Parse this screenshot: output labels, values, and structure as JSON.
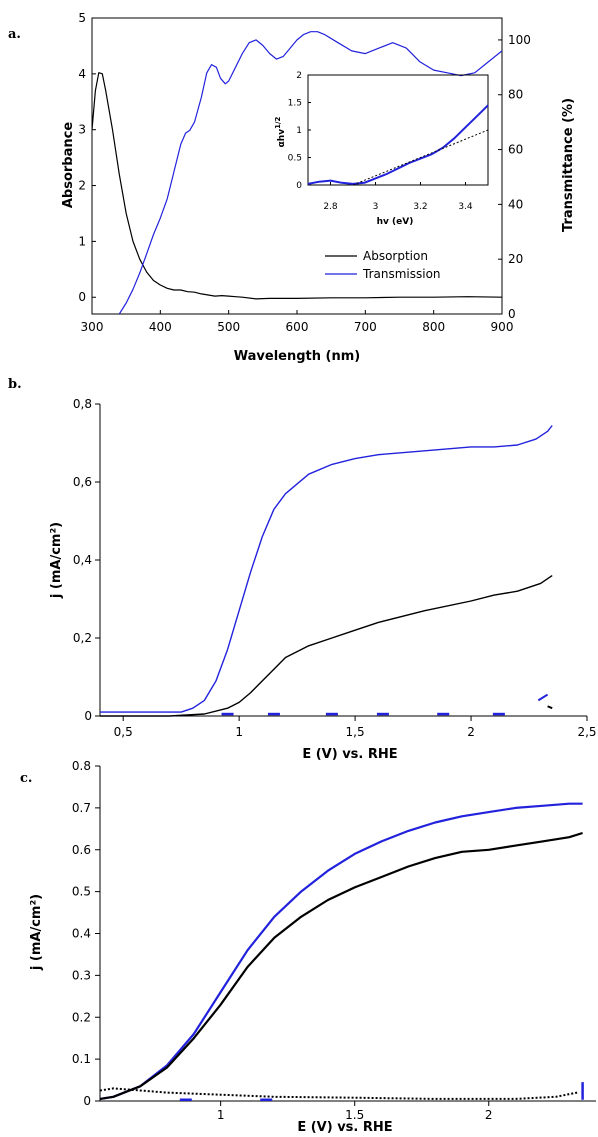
{
  "colors": {
    "blue": "#2222dd",
    "black": "#000000"
  },
  "chart_data": [
    {
      "panel": "a.",
      "type": "line",
      "xlabel": "Wavelength (nm)",
      "ylabel_left": "Absorbance",
      "ylabel_right": "Transmittance (%)",
      "xlim": [
        300,
        900
      ],
      "ylim_left": [
        -0.3,
        5
      ],
      "ylim_right": [
        0,
        108
      ],
      "x_ticks": [
        "300",
        "400",
        "500",
        "600",
        "700",
        "800",
        "900"
      ],
      "y_ticks_left": [
        "0",
        "1",
        "2",
        "3",
        "4",
        "5"
      ],
      "y_ticks_right": [
        "0",
        "20",
        "40",
        "60",
        "80",
        "100"
      ],
      "legend": [
        "Absorption",
        "Transmission"
      ],
      "series": [
        {
          "name": "Absorption",
          "axis": "left",
          "color": "#000000",
          "points": [
            [
              300,
              3.0
            ],
            [
              305,
              3.7
            ],
            [
              310,
              4.02
            ],
            [
              315,
              4.0
            ],
            [
              320,
              3.7
            ],
            [
              330,
              3.0
            ],
            [
              340,
              2.2
            ],
            [
              350,
              1.5
            ],
            [
              360,
              1.0
            ],
            [
              370,
              0.68
            ],
            [
              380,
              0.45
            ],
            [
              390,
              0.3
            ],
            [
              400,
              0.22
            ],
            [
              410,
              0.16
            ],
            [
              420,
              0.13
            ],
            [
              430,
              0.13
            ],
            [
              440,
              0.1
            ],
            [
              450,
              0.09
            ],
            [
              460,
              0.06
            ],
            [
              470,
              0.04
            ],
            [
              480,
              0.02
            ],
            [
              490,
              0.03
            ],
            [
              500,
              0.02
            ],
            [
              510,
              0.01
            ],
            [
              520,
              0.0
            ],
            [
              540,
              -0.03
            ],
            [
              560,
              -0.02
            ],
            [
              600,
              -0.02
            ],
            [
              650,
              -0.01
            ],
            [
              700,
              -0.01
            ],
            [
              750,
              0.0
            ],
            [
              800,
              0.0
            ],
            [
              850,
              0.01
            ],
            [
              900,
              0.0
            ]
          ]
        },
        {
          "name": "Transmission",
          "axis": "right",
          "color": "#2222dd",
          "points": [
            [
              340,
              0
            ],
            [
              350,
              4
            ],
            [
              360,
              9
            ],
            [
              370,
              15
            ],
            [
              380,
              22
            ],
            [
              390,
              29
            ],
            [
              400,
              35
            ],
            [
              410,
              42
            ],
            [
              420,
              52
            ],
            [
              430,
              62
            ],
            [
              437,
              66
            ],
            [
              443,
              67
            ],
            [
              450,
              70
            ],
            [
              460,
              79
            ],
            [
              468,
              88
            ],
            [
              475,
              91
            ],
            [
              482,
              90
            ],
            [
              488,
              86
            ],
            [
              495,
              84
            ],
            [
              500,
              85
            ],
            [
              510,
              90
            ],
            [
              520,
              95
            ],
            [
              530,
              99
            ],
            [
              540,
              100
            ],
            [
              550,
              98
            ],
            [
              560,
              95
            ],
            [
              570,
              93
            ],
            [
              580,
              94
            ],
            [
              590,
              97
            ],
            [
              600,
              100
            ],
            [
              610,
              102
            ],
            [
              620,
              103
            ],
            [
              630,
              103
            ],
            [
              640,
              102
            ],
            [
              660,
              99
            ],
            [
              680,
              96
            ],
            [
              700,
              95
            ],
            [
              720,
              97
            ],
            [
              740,
              99
            ],
            [
              760,
              97
            ],
            [
              780,
              92
            ],
            [
              800,
              89
            ],
            [
              820,
              88
            ],
            [
              840,
              87
            ],
            [
              860,
              88
            ],
            [
              880,
              92
            ],
            [
              900,
              96
            ]
          ]
        }
      ],
      "inset": {
        "xlabel": "hv (eV)",
        "ylabel": "αhv",
        "ylabel_sup": "1/2",
        "xlim": [
          2.7,
          3.5
        ],
        "ylim": [
          0,
          2
        ],
        "x_ticks": [
          "2.8",
          "3",
          "3.2",
          "3.4"
        ],
        "y_ticks": [
          "0",
          "0.5",
          "1",
          "1.5",
          "2"
        ],
        "series": [
          {
            "name": "data",
            "color": "#2222dd",
            "points": [
              [
                2.7,
                0.02
              ],
              [
                2.75,
                0.06
              ],
              [
                2.8,
                0.08
              ],
              [
                2.85,
                0.04
              ],
              [
                2.9,
                0.02
              ],
              [
                2.95,
                0.04
              ],
              [
                3.0,
                0.12
              ],
              [
                3.05,
                0.2
              ],
              [
                3.1,
                0.3
              ],
              [
                3.15,
                0.4
              ],
              [
                3.2,
                0.48
              ],
              [
                3.25,
                0.56
              ],
              [
                3.3,
                0.68
              ],
              [
                3.35,
                0.85
              ],
              [
                3.4,
                1.05
              ],
              [
                3.45,
                1.25
              ],
              [
                3.5,
                1.45
              ]
            ]
          },
          {
            "name": "fit",
            "color": "#000000",
            "dashed": true,
            "points": [
              [
                2.9,
                0.0
              ],
              [
                3.5,
                1.0
              ]
            ]
          }
        ]
      }
    },
    {
      "panel": "b.",
      "type": "line",
      "xlabel": "E (V) vs. RHE",
      "ylabel": "j (mA/cm²)",
      "xlim": [
        0.4,
        2.5
      ],
      "ylim": [
        0,
        0.8
      ],
      "x_ticks": [
        "0,5",
        "1",
        "1,5",
        "2",
        "2,5"
      ],
      "y_ticks": [
        "0",
        "0,2",
        "0,4",
        "0,6",
        "0,8"
      ],
      "series": [
        {
          "name": "",
          "color": "#2222dd",
          "points": [
            [
              0.4,
              0.01
            ],
            [
              0.6,
              0.01
            ],
            [
              0.75,
              0.01
            ],
            [
              0.8,
              0.02
            ],
            [
              0.85,
              0.04
            ],
            [
              0.9,
              0.09
            ],
            [
              0.95,
              0.17
            ],
            [
              1.0,
              0.27
            ],
            [
              1.05,
              0.37
            ],
            [
              1.1,
              0.46
            ],
            [
              1.15,
              0.53
            ],
            [
              1.2,
              0.57
            ],
            [
              1.3,
              0.62
            ],
            [
              1.4,
              0.645
            ],
            [
              1.5,
              0.66
            ],
            [
              1.6,
              0.67
            ],
            [
              1.8,
              0.68
            ],
            [
              2.0,
              0.69
            ],
            [
              2.1,
              0.69
            ],
            [
              2.2,
              0.695
            ],
            [
              2.28,
              0.71
            ],
            [
              2.33,
              0.73
            ],
            [
              2.35,
              0.745
            ]
          ]
        },
        {
          "name": "",
          "color": "#000000",
          "points": [
            [
              0.4,
              0.0
            ],
            [
              0.7,
              0.0
            ],
            [
              0.85,
              0.005
            ],
            [
              0.95,
              0.02
            ],
            [
              1.0,
              0.035
            ],
            [
              1.05,
              0.06
            ],
            [
              1.1,
              0.09
            ],
            [
              1.15,
              0.12
            ],
            [
              1.2,
              0.15
            ],
            [
              1.3,
              0.18
            ],
            [
              1.4,
              0.2
            ],
            [
              1.5,
              0.22
            ],
            [
              1.6,
              0.24
            ],
            [
              1.8,
              0.27
            ],
            [
              2.0,
              0.295
            ],
            [
              2.1,
              0.31
            ],
            [
              2.2,
              0.32
            ],
            [
              2.3,
              0.34
            ],
            [
              2.35,
              0.36
            ]
          ]
        }
      ],
      "dark_marks": [
        0.95,
        1.15,
        1.4,
        1.62,
        1.88,
        2.12
      ],
      "dark_marks_y": 0.005
    },
    {
      "panel": "c.",
      "type": "line",
      "xlabel": "E (V) vs. RHE",
      "ylabel": "j (mA/cm²)",
      "xlim": [
        0.55,
        2.4
      ],
      "ylim": [
        0,
        0.8
      ],
      "x_ticks": [
        "1",
        "1.5",
        "2"
      ],
      "y_ticks": [
        "0",
        "0.1",
        "0.2",
        "0.3",
        "0.4",
        "0.5",
        "0.6",
        "0.7",
        "0.8"
      ],
      "series": [
        {
          "name": "",
          "color": "#2222dd",
          "points": [
            [
              0.55,
              0.005
            ],
            [
              0.6,
              0.01
            ],
            [
              0.7,
              0.035
            ],
            [
              0.8,
              0.085
            ],
            [
              0.9,
              0.16
            ],
            [
              1.0,
              0.26
            ],
            [
              1.1,
              0.36
            ],
            [
              1.2,
              0.44
            ],
            [
              1.3,
              0.5
            ],
            [
              1.4,
              0.55
            ],
            [
              1.5,
              0.59
            ],
            [
              1.6,
              0.62
            ],
            [
              1.7,
              0.645
            ],
            [
              1.8,
              0.665
            ],
            [
              1.9,
              0.68
            ],
            [
              2.0,
              0.69
            ],
            [
              2.1,
              0.7
            ],
            [
              2.2,
              0.705
            ],
            [
              2.3,
              0.71
            ],
            [
              2.35,
              0.71
            ]
          ]
        },
        {
          "name": "",
          "color": "#000000",
          "points": [
            [
              0.55,
              0.005
            ],
            [
              0.6,
              0.01
            ],
            [
              0.7,
              0.035
            ],
            [
              0.8,
              0.08
            ],
            [
              0.9,
              0.15
            ],
            [
              1.0,
              0.23
            ],
            [
              1.1,
              0.32
            ],
            [
              1.2,
              0.39
            ],
            [
              1.3,
              0.44
            ],
            [
              1.4,
              0.48
            ],
            [
              1.5,
              0.51
            ],
            [
              1.6,
              0.535
            ],
            [
              1.7,
              0.56
            ],
            [
              1.8,
              0.58
            ],
            [
              1.9,
              0.595
            ],
            [
              2.0,
              0.6
            ],
            [
              2.1,
              0.61
            ],
            [
              2.2,
              0.62
            ],
            [
              2.3,
              0.63
            ],
            [
              2.35,
              0.64
            ]
          ]
        },
        {
          "name": "",
          "color": "#000000",
          "dashed": true,
          "points": [
            [
              0.55,
              0.025
            ],
            [
              0.6,
              0.03
            ],
            [
              0.7,
              0.025
            ],
            [
              0.8,
              0.02
            ],
            [
              1.0,
              0.015
            ],
            [
              1.2,
              0.01
            ],
            [
              1.5,
              0.008
            ],
            [
              1.8,
              0.005
            ],
            [
              2.1,
              0.005
            ],
            [
              2.25,
              0.01
            ],
            [
              2.33,
              0.02
            ]
          ]
        }
      ],
      "dark_marks": [
        0.87,
        1.17,
        2.35
      ],
      "dark_marks_y": 0.003
    }
  ]
}
